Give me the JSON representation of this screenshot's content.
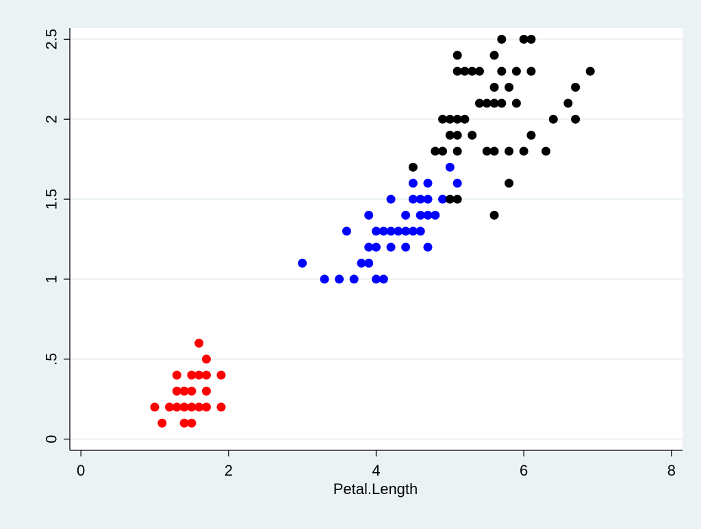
{
  "colors": {
    "background": "#eaf2f3",
    "plot_background": "#ffffff",
    "gridline": "#eaf2f3",
    "axis": "#000000"
  },
  "chart_data": {
    "type": "scatter",
    "title": "",
    "xlabel": "Petal.Length",
    "ylabel": "",
    "xlim": [
      -0.15,
      8.15
    ],
    "ylim": [
      -0.07,
      2.57
    ],
    "x_ticks": [
      0,
      2,
      4,
      6,
      8
    ],
    "x_tick_labels": [
      "0",
      "2",
      "4",
      "6",
      "8"
    ],
    "y_ticks": [
      0,
      0.5,
      1,
      1.5,
      2,
      2.5
    ],
    "y_tick_labels": [
      "0",
      ".5",
      "1",
      "1.5",
      "2",
      "2.5"
    ],
    "grid": "horizontal",
    "legend": "none",
    "series": [
      {
        "color": "#ff0000",
        "points": [
          [
            1.0,
            0.2
          ],
          [
            1.1,
            0.1
          ],
          [
            1.2,
            0.2
          ],
          [
            1.3,
            0.2
          ],
          [
            1.3,
            0.3
          ],
          [
            1.3,
            0.4
          ],
          [
            1.4,
            0.1
          ],
          [
            1.4,
            0.2
          ],
          [
            1.4,
            0.3
          ],
          [
            1.5,
            0.1
          ],
          [
            1.5,
            0.2
          ],
          [
            1.5,
            0.3
          ],
          [
            1.5,
            0.4
          ],
          [
            1.6,
            0.2
          ],
          [
            1.6,
            0.4
          ],
          [
            1.6,
            0.6
          ],
          [
            1.7,
            0.2
          ],
          [
            1.7,
            0.3
          ],
          [
            1.7,
            0.4
          ],
          [
            1.7,
            0.5
          ],
          [
            1.9,
            0.2
          ],
          [
            1.9,
            0.4
          ]
        ]
      },
      {
        "color": "#0000ff",
        "points": [
          [
            3.0,
            1.1
          ],
          [
            3.3,
            1.0
          ],
          [
            3.5,
            1.0
          ],
          [
            3.6,
            1.3
          ],
          [
            3.7,
            1.0
          ],
          [
            3.8,
            1.1
          ],
          [
            3.9,
            1.1
          ],
          [
            3.9,
            1.2
          ],
          [
            3.9,
            1.4
          ],
          [
            4.0,
            1.0
          ],
          [
            4.0,
            1.2
          ],
          [
            4.0,
            1.3
          ],
          [
            4.1,
            1.0
          ],
          [
            4.1,
            1.3
          ],
          [
            4.2,
            1.2
          ],
          [
            4.2,
            1.3
          ],
          [
            4.2,
            1.5
          ],
          [
            4.3,
            1.3
          ],
          [
            4.4,
            1.2
          ],
          [
            4.4,
            1.3
          ],
          [
            4.4,
            1.4
          ],
          [
            4.5,
            1.3
          ],
          [
            4.5,
            1.5
          ],
          [
            4.5,
            1.6
          ],
          [
            4.6,
            1.3
          ],
          [
            4.6,
            1.4
          ],
          [
            4.6,
            1.5
          ],
          [
            4.7,
            1.2
          ],
          [
            4.7,
            1.4
          ],
          [
            4.7,
            1.5
          ],
          [
            4.7,
            1.6
          ],
          [
            4.8,
            1.4
          ],
          [
            4.9,
            1.5
          ],
          [
            5.0,
            1.7
          ],
          [
            5.1,
            1.6
          ]
        ]
      },
      {
        "color": "#000000",
        "points": [
          [
            4.5,
            1.7
          ],
          [
            4.8,
            1.8
          ],
          [
            4.9,
            1.8
          ],
          [
            4.9,
            2.0
          ],
          [
            5.0,
            1.5
          ],
          [
            5.0,
            1.9
          ],
          [
            5.0,
            2.0
          ],
          [
            5.1,
            1.5
          ],
          [
            5.1,
            1.8
          ],
          [
            5.1,
            1.9
          ],
          [
            5.1,
            2.0
          ],
          [
            5.1,
            2.3
          ],
          [
            5.1,
            2.4
          ],
          [
            5.2,
            2.0
          ],
          [
            5.2,
            2.3
          ],
          [
            5.3,
            1.9
          ],
          [
            5.3,
            2.3
          ],
          [
            5.4,
            2.1
          ],
          [
            5.4,
            2.3
          ],
          [
            5.5,
            1.8
          ],
          [
            5.5,
            2.1
          ],
          [
            5.6,
            1.4
          ],
          [
            5.6,
            1.8
          ],
          [
            5.6,
            2.1
          ],
          [
            5.6,
            2.2
          ],
          [
            5.6,
            2.4
          ],
          [
            5.7,
            2.1
          ],
          [
            5.7,
            2.3
          ],
          [
            5.7,
            2.5
          ],
          [
            5.8,
            1.6
          ],
          [
            5.8,
            1.8
          ],
          [
            5.8,
            2.2
          ],
          [
            5.9,
            2.1
          ],
          [
            5.9,
            2.3
          ],
          [
            6.0,
            1.8
          ],
          [
            6.0,
            2.5
          ],
          [
            6.1,
            1.9
          ],
          [
            6.1,
            2.3
          ],
          [
            6.1,
            2.5
          ],
          [
            6.3,
            1.8
          ],
          [
            6.4,
            2.0
          ],
          [
            6.6,
            2.1
          ],
          [
            6.7,
            2.0
          ],
          [
            6.7,
            2.2
          ],
          [
            6.9,
            2.3
          ]
        ]
      }
    ]
  }
}
